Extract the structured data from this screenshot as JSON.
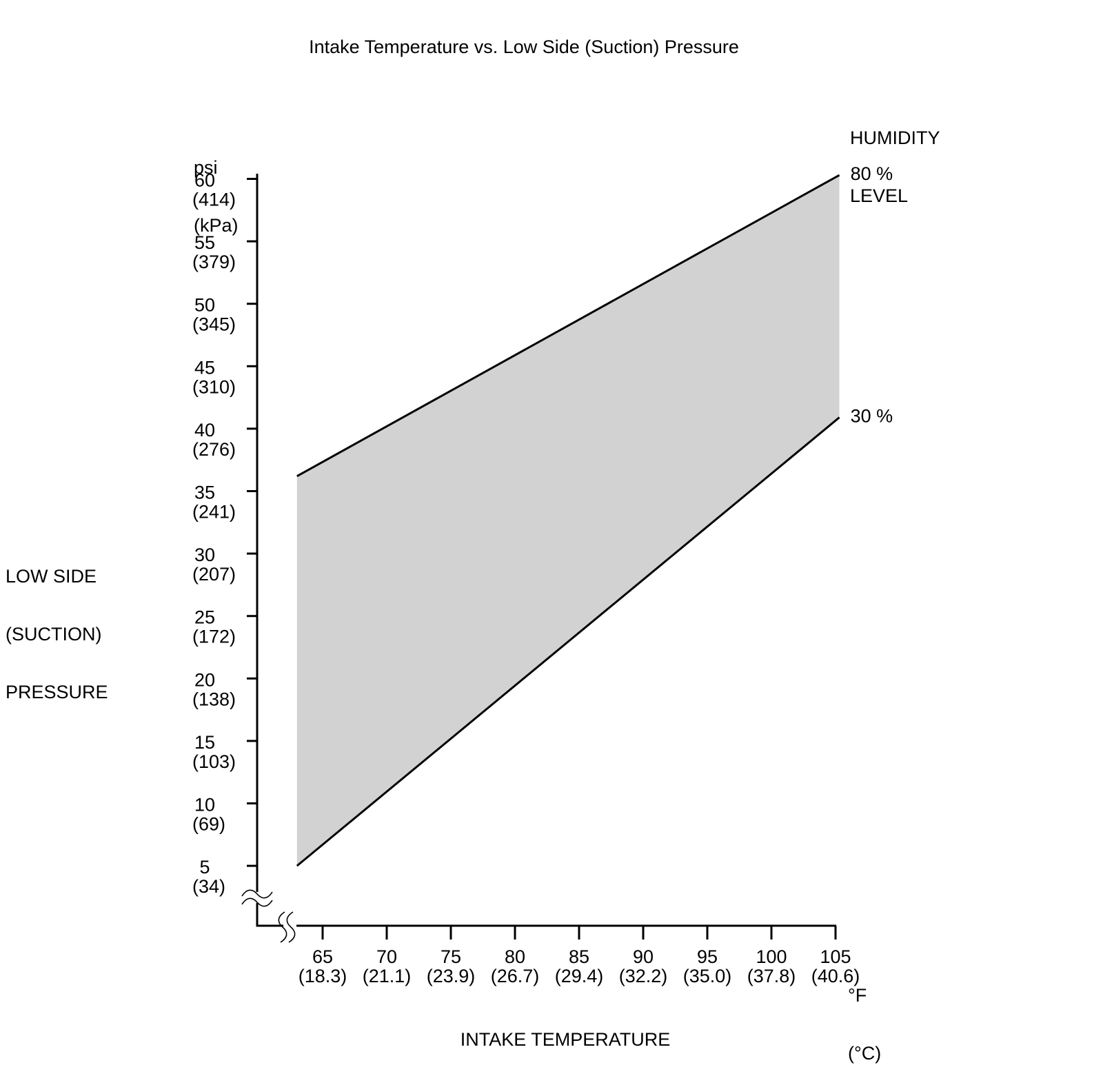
{
  "chart_data": {
    "type": "area",
    "title": "Intake Temperature vs. Low Side (Suction) Pressure",
    "x_axis": {
      "title": "INTAKE TEMPERATURE",
      "unit_primary": "°F",
      "unit_secondary": "(°C)",
      "range_f": [
        65,
        105
      ],
      "ticks": [
        {
          "v": 65,
          "label": "65",
          "sub": "(18.3)"
        },
        {
          "v": 70,
          "label": "70",
          "sub": "(21.1)"
        },
        {
          "v": 75,
          "label": "75",
          "sub": "(23.9)"
        },
        {
          "v": 80,
          "label": "80",
          "sub": "(26.7)"
        },
        {
          "v": 85,
          "label": "85",
          "sub": "(29.4)"
        },
        {
          "v": 90,
          "label": "90",
          "sub": "(32.2)"
        },
        {
          "v": 95,
          "label": "95",
          "sub": "(35.0)"
        },
        {
          "v": 100,
          "label": "100",
          "sub": "(37.8)"
        },
        {
          "v": 105,
          "label": "105",
          "sub": "(40.6)"
        }
      ]
    },
    "y_axis": {
      "title_lines": [
        "LOW SIDE",
        "(SUCTION)",
        "PRESSURE"
      ],
      "unit_primary": "psi",
      "unit_secondary": "(kPa)",
      "range_psi": [
        5,
        60
      ],
      "ticks": [
        {
          "v": 60,
          "label": "60",
          "sub": "(414)"
        },
        {
          "v": 55,
          "label": "55",
          "sub": "(379)"
        },
        {
          "v": 50,
          "label": "50",
          "sub": "(345)"
        },
        {
          "v": 45,
          "label": "45",
          "sub": "(310)"
        },
        {
          "v": 40,
          "label": "40",
          "sub": "(276)"
        },
        {
          "v": 35,
          "label": "35",
          "sub": "(241)"
        },
        {
          "v": 30,
          "label": "30",
          "sub": "(207)"
        },
        {
          "v": 25,
          "label": "25",
          "sub": "(172)"
        },
        {
          "v": 20,
          "label": "20",
          "sub": "(138)"
        },
        {
          "v": 15,
          "label": "15",
          "sub": "(103)"
        },
        {
          "v": 10,
          "label": "10",
          "sub": "(69)"
        },
        {
          "v": 5,
          "label": "5",
          "sub": "(34)"
        }
      ]
    },
    "legend": {
      "title_line1": "HUMIDITY",
      "title_line2": "LEVEL",
      "position": "top-right"
    },
    "series": [
      {
        "label": "80 %",
        "humidity_percent": 80,
        "points_f_psi": [
          [
            63.0,
            36.2
          ],
          [
            105.3,
            60.3
          ]
        ]
      },
      {
        "label": "30 %",
        "humidity_percent": 30,
        "points_f_psi": [
          [
            63.0,
            5.0
          ],
          [
            105.3,
            40.9
          ]
        ]
      }
    ],
    "band": {
      "fill": "#d2d2d2",
      "between": [
        "80 %",
        "30 %"
      ]
    },
    "line_color": "#000000",
    "background": "#ffffff",
    "grid": false,
    "axis_breaks": {
      "x": true,
      "y": true
    }
  }
}
